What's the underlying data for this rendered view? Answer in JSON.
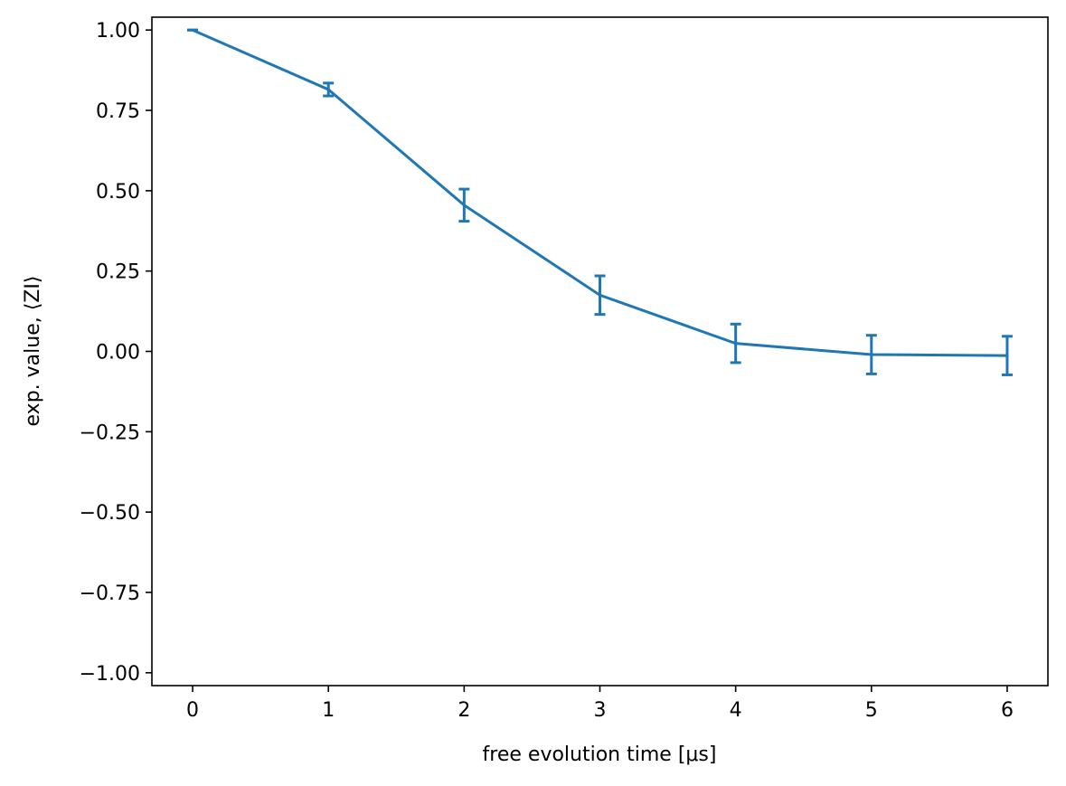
{
  "chart_data": {
    "type": "line",
    "title": "",
    "xlabel": "free evolution time [μs]",
    "ylabel": "exp. value, ⟨ZI⟩",
    "xlim": [
      -0.3,
      6.3
    ],
    "ylim": [
      -1.04,
      1.04
    ],
    "xticks": [
      0,
      1,
      2,
      3,
      4,
      5,
      6
    ],
    "yticks": [
      1.0,
      0.75,
      0.5,
      0.25,
      0.0,
      -0.25,
      -0.5,
      -0.75,
      -1.0
    ],
    "xtick_labels": [
      "0",
      "1",
      "2",
      "3",
      "4",
      "5",
      "6"
    ],
    "ytick_labels": [
      "1.00",
      "0.75",
      "0.50",
      "0.25",
      "0.00",
      "−0.25",
      "−0.50",
      "−0.75",
      "−1.00"
    ],
    "grid": false,
    "color": "#1f77b4",
    "series": [
      {
        "x": [
          0,
          1,
          2,
          3,
          4,
          5,
          6
        ],
        "y": [
          1.0,
          0.815,
          0.455,
          0.175,
          0.025,
          -0.01,
          -0.013
        ],
        "yerr": [
          0.0,
          0.02,
          0.05,
          0.06,
          0.06,
          0.06,
          0.06
        ]
      }
    ]
  }
}
